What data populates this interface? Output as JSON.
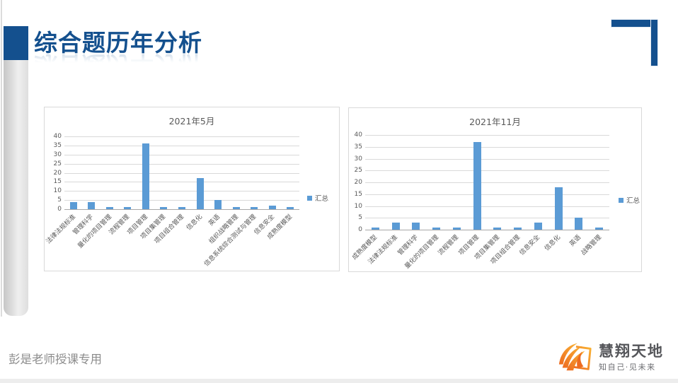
{
  "slide": {
    "title": "综合题历年分析",
    "footer_note": "彭是老师授课专用",
    "accent_color": "#14508E"
  },
  "logo": {
    "name": "慧翔天地",
    "slogan": "知自己·见未来",
    "icon": "book-wing-icon",
    "icon_colors": [
      "#F9B233",
      "#ED6B21"
    ]
  },
  "chart_data": [
    {
      "type": "bar",
      "title": "2021年5月",
      "categories": [
        "法律法规标准",
        "管理科学",
        "量化的项目管理",
        "流程管理",
        "项目管理",
        "项目集管理",
        "项目组合管理",
        "信息化",
        "英语",
        "组织战略管理",
        "信息系统综合测试与管理",
        "信息安全",
        "成熟度模型"
      ],
      "series": [
        {
          "name": "汇总",
          "values": [
            4,
            4,
            1,
            1,
            36,
            1,
            1,
            17,
            5,
            1,
            1,
            2,
            1
          ]
        }
      ],
      "ylim": [
        0,
        40
      ],
      "yticks": [
        0,
        5,
        10,
        15,
        20,
        25,
        30,
        35,
        40
      ],
      "bar_color": "#5B9BD5",
      "grid": true,
      "legend_position": "right",
      "xlabel": "",
      "ylabel": ""
    },
    {
      "type": "bar",
      "title": "2021年11月",
      "categories": [
        "成熟度模型",
        "法律法规标准",
        "管理科学",
        "量化的项目管理",
        "流程管理",
        "项目管理",
        "项目集管理",
        "项目组合管理",
        "信息安全",
        "信息化",
        "英语",
        "战略管理"
      ],
      "series": [
        {
          "name": "汇总",
          "values": [
            1,
            3,
            3,
            1,
            1,
            37,
            1,
            1,
            3,
            18,
            5,
            1
          ]
        }
      ],
      "ylim": [
        0,
        40
      ],
      "yticks": [
        0,
        5,
        10,
        15,
        20,
        25,
        30,
        35,
        40
      ],
      "bar_color": "#5B9BD5",
      "grid": true,
      "legend_position": "right",
      "xlabel": "",
      "ylabel": ""
    }
  ]
}
